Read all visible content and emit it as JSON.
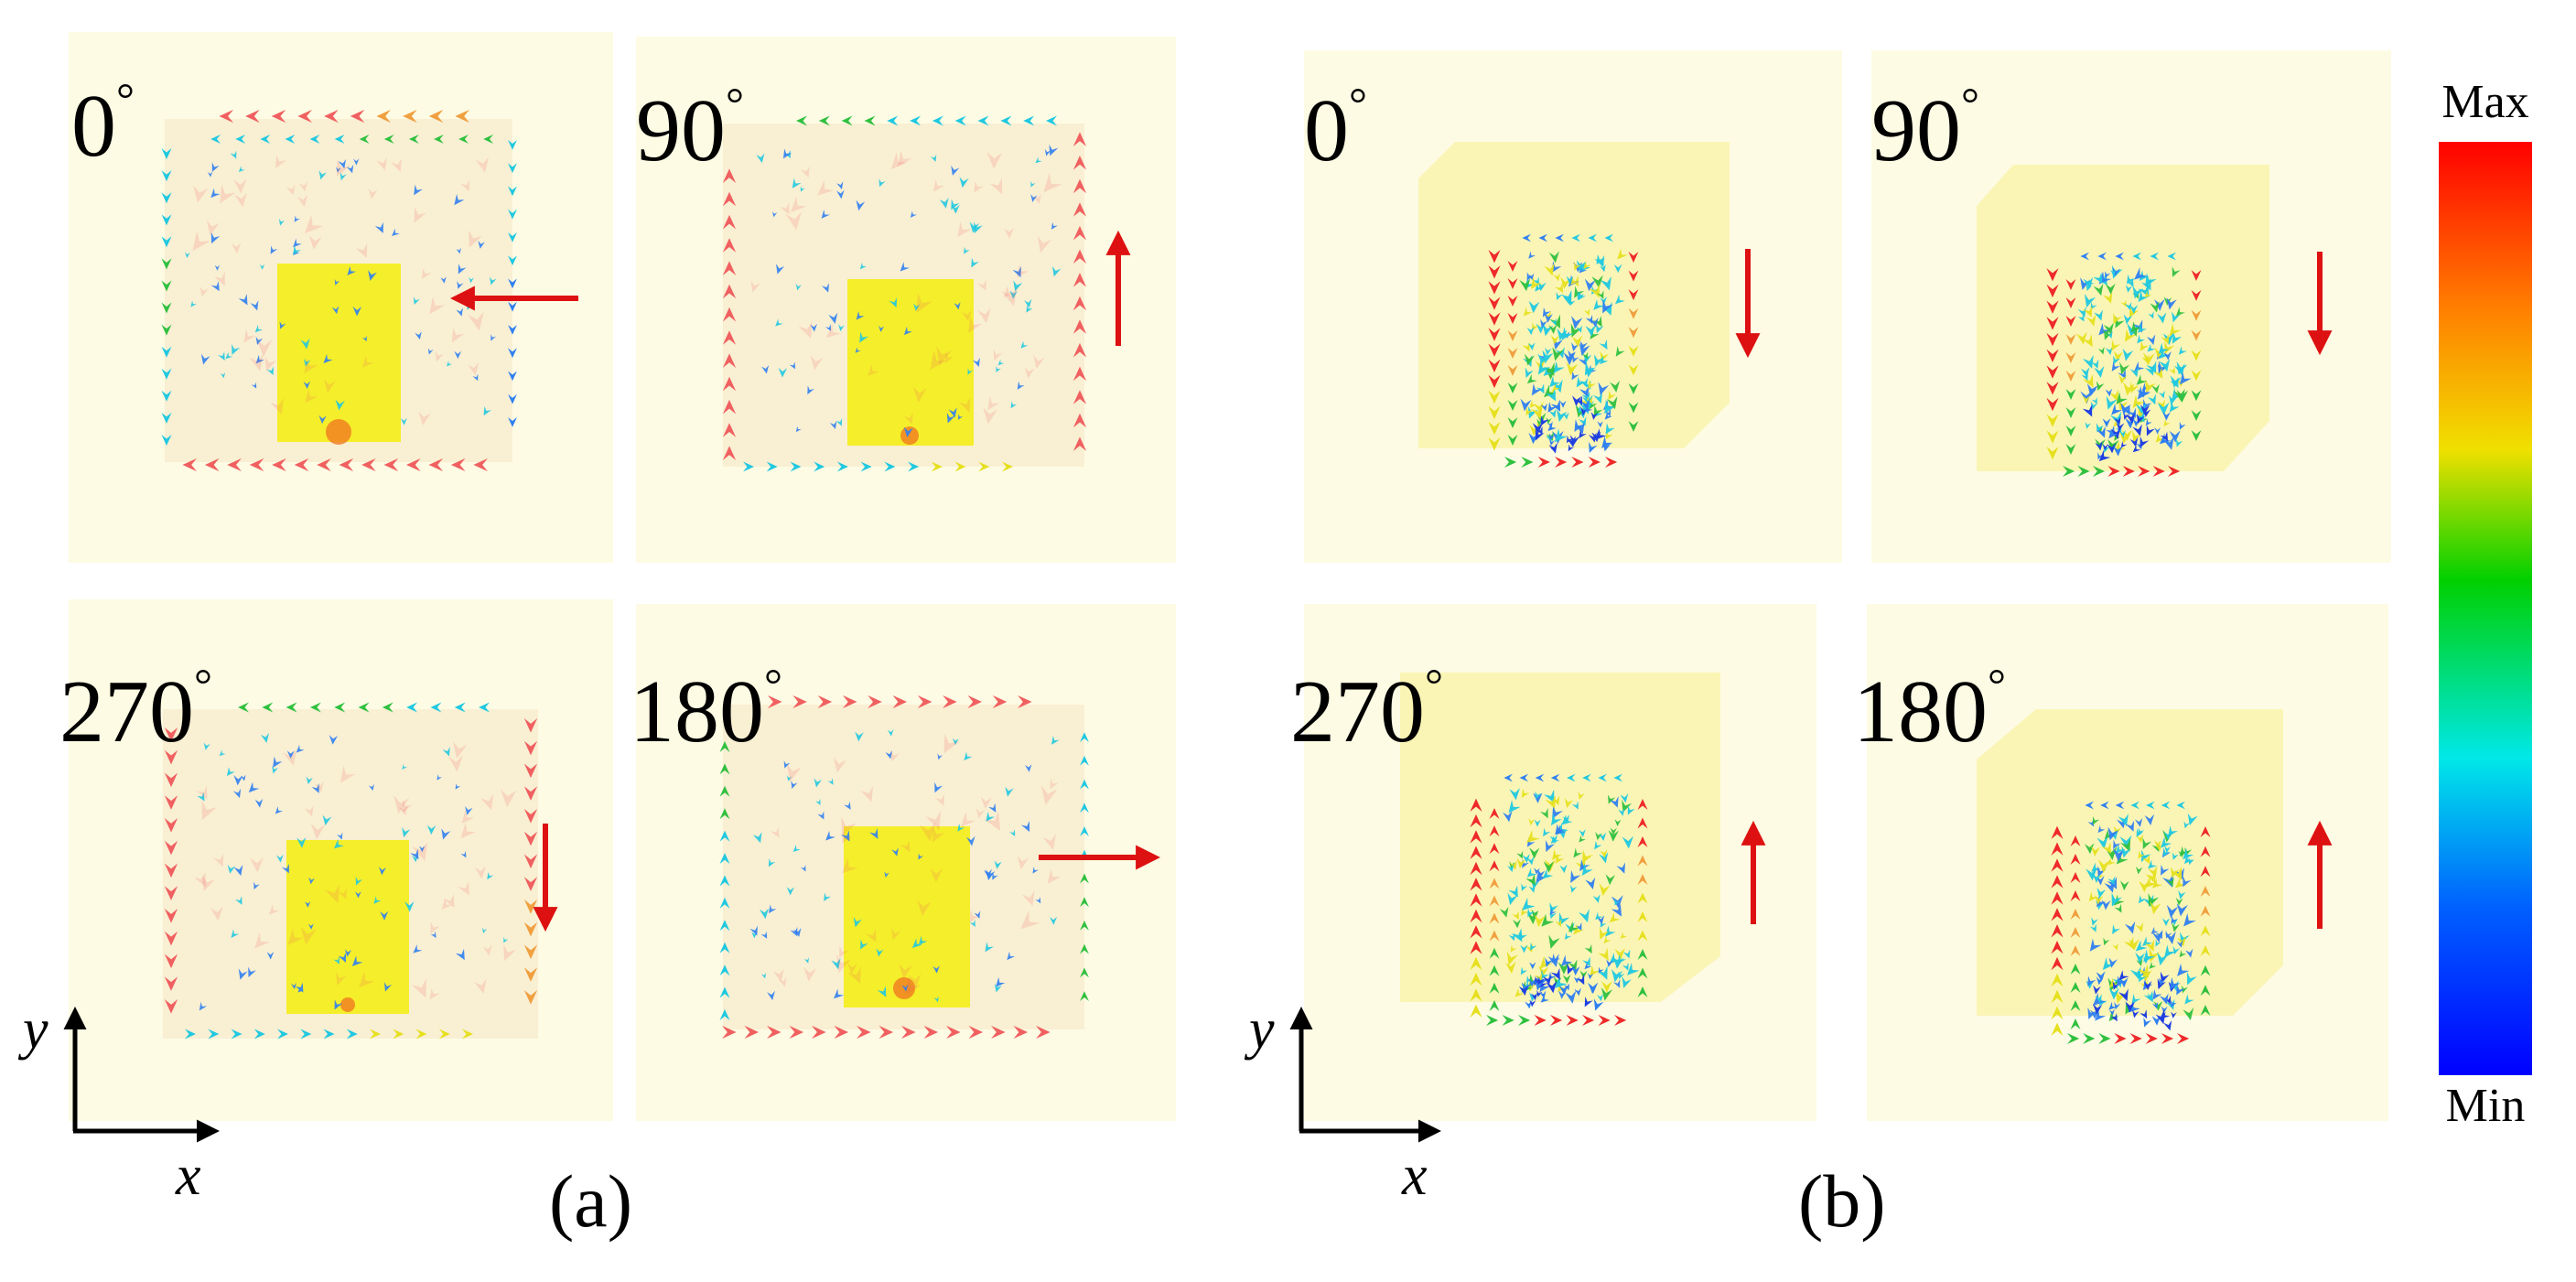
{
  "panels": [
    {
      "id": "a",
      "caption": "(a)",
      "subplots": [
        {
          "angle_label": "0",
          "source_direction": "left",
          "variant": "a0"
        },
        {
          "angle_label": "90",
          "source_direction": "up",
          "variant": "a90"
        },
        {
          "angle_label": "270",
          "source_direction": "down",
          "variant": "a270"
        },
        {
          "angle_label": "180",
          "source_direction": "right",
          "variant": "a180"
        }
      ],
      "axes": {
        "x_label": "x",
        "y_label": "y"
      }
    },
    {
      "id": "b",
      "caption": "(b)",
      "subplots": [
        {
          "angle_label": "0",
          "source_direction": "down",
          "variant": "b0"
        },
        {
          "angle_label": "90",
          "source_direction": "down",
          "variant": "b90"
        },
        {
          "angle_label": "270",
          "source_direction": "up",
          "variant": "b270"
        },
        {
          "angle_label": "180",
          "source_direction": "up",
          "variant": "b180"
        }
      ],
      "axes": {
        "x_label": "x",
        "y_label": "y"
      }
    }
  ],
  "colorbar": {
    "max_label": "Max",
    "min_label": "Min",
    "gradient": [
      "#ff0000",
      "#ff8000",
      "#f0e000",
      "#00d000",
      "#00e8e8",
      "#0060ff",
      "#0000ff"
    ]
  },
  "colors": {
    "panel_background": "#fdfbe4",
    "patch": "#fbf5b5",
    "feed": "#f5ee2a",
    "source_arrow": "#dd1111"
  },
  "degree_symbol": "°"
}
